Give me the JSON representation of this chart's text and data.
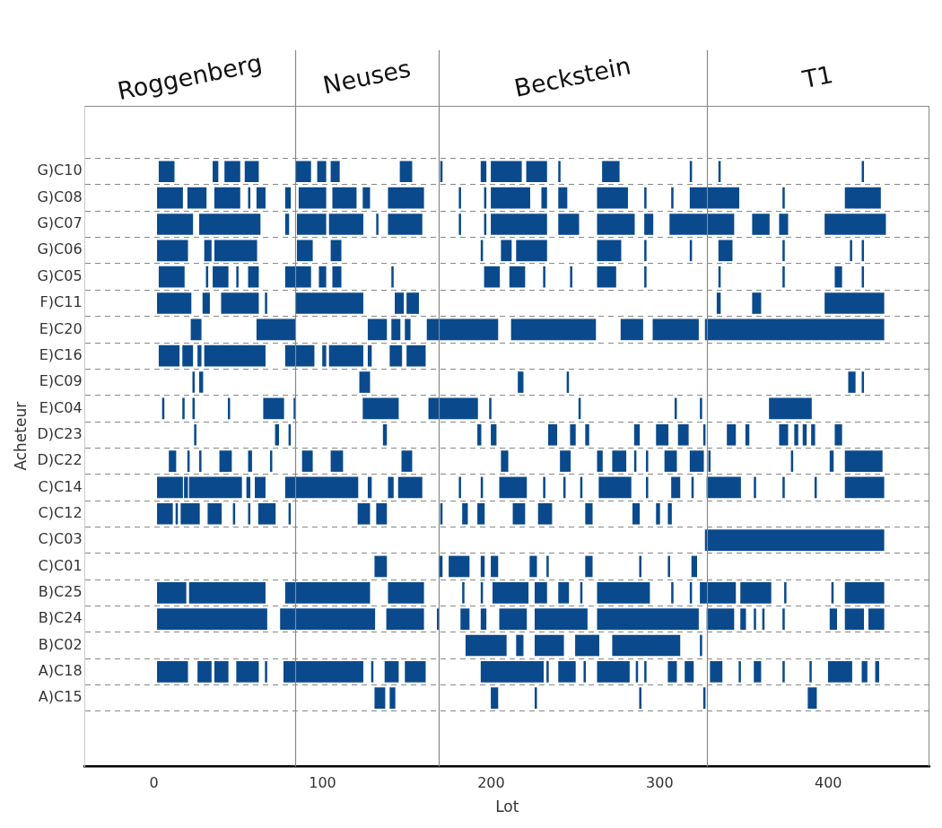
{
  "chart_data": {
    "type": "bar",
    "orientation": "horizontal",
    "xlabel": "Lot",
    "ylabel": "Acheteur",
    "color": "#0a4a8c",
    "grid": "y",
    "legend": false,
    "categories": [
      "G)C10",
      "G)C08",
      "G)C07",
      "G)C06",
      "G)C05",
      "F)C11",
      "E)C20",
      "E)C16",
      "E)C09",
      "E)C04",
      "D)C23",
      "D)C22",
      "C)C14",
      "C)C12",
      "C)C03",
      "C)C01",
      "B)C25",
      "B)C24",
      "B)C02",
      "A)C18",
      "A)C15"
    ],
    "xlim": [
      -41,
      460
    ],
    "xticks": [
      0,
      100,
      200,
      300,
      400
    ],
    "ref_lines": [
      {
        "axis": "x",
        "value": 84
      },
      {
        "axis": "x",
        "value": 169
      },
      {
        "axis": "x",
        "value": 328
      }
    ],
    "annotations": [
      "Roggenberg",
      "Neuses",
      "Beckstein",
      "T1"
    ],
    "series": [
      {
        "base": [
          3,
          2,
          2,
          2,
          3,
          2,
          22,
          3,
          23,
          5,
          24,
          9,
          2,
          2,
          327,
          131,
          2,
          2,
          185,
          2,
          131
        ],
        "values": [
          9,
          15,
          21,
          18,
          15,
          20,
          6,
          12,
          1,
          1,
          1,
          4,
          15,
          9,
          106,
          7,
          17,
          65,
          24,
          18,
          6
        ]
      },
      {
        "base": [
          35,
          20,
          27,
          30,
          31,
          29,
          61,
          17,
          27,
          17,
          72,
          20,
          18,
          13,
          null,
          169,
          21,
          75,
          215,
          26,
          140
        ],
        "values": [
          3,
          11,
          36,
          4,
          1,
          4,
          23,
          6,
          2,
          1,
          2,
          1,
          2,
          1,
          null,
          2,
          45,
          56,
          4,
          8,
          3
        ]
      },
      {
        "base": [
          42,
          36,
          78,
          36,
          35,
          40,
          127,
          26,
          122,
          23,
          80,
          27,
          21,
          16,
          null,
          175,
          78,
          138,
          226,
          36,
          200
        ],
        "values": [
          9,
          15,
          2,
          25,
          9,
          22,
          11,
          2,
          6,
          1,
          1,
          1,
          31,
          11,
          null,
          12,
          50,
          22,
          17,
          8,
          4
        ]
      },
      {
        "base": [
          54,
          56,
          85,
          85,
          49,
          66,
          141,
          30,
          216,
          44,
          136,
          39,
          55,
          32,
          null,
          194,
          139,
          168,
          250,
          49,
          226
        ],
        "values": [
          8,
          1,
          17,
          9,
          1,
          1,
          5,
          36,
          3,
          1,
          2,
          7,
          2,
          8,
          null,
          2,
          21,
          1,
          14,
          13,
          1
        ]
      },
      {
        "base": [
          84,
          61,
          104,
          105,
          56,
          84,
          149,
          78,
          245,
          65,
          192,
          56,
          60,
          47,
          null,
          200,
          183,
          182,
          272,
          66,
          288
        ],
        "values": [
          9,
          5,
          20,
          6,
          6,
          40,
          3,
          17,
          1,
          12,
          2,
          2,
          6,
          1,
          null,
          4,
          1,
          5,
          40,
          1,
          1
        ]
      },
      {
        "base": [
          97,
          78,
          132,
          194,
          78,
          143,
          162,
          100,
          412,
          83,
          200,
          69,
          78,
          56,
          null,
          223,
          194,
          194,
          324,
          77,
          326
        ],
        "values": [
          5,
          3,
          1,
          1,
          15,
          5,
          42,
          2,
          4,
          1,
          3,
          1,
          43,
          1,
          null,
          4,
          1,
          3,
          1,
          47,
          1
        ]
      },
      {
        "base": [
          105,
          86,
          139,
          206,
          98,
          150,
          212,
          104,
          420,
          124,
          234,
          88,
          127,
          62,
          null,
          233,
          201,
          205,
          null,
          129,
          388
        ],
        "values": [
          5,
          16,
          20,
          6,
          4,
          7,
          50,
          20,
          1,
          21,
          5,
          6,
          2,
          10,
          null,
          1,
          21,
          16,
          null,
          1,
          5
        ]
      },
      {
        "base": [
          146,
          106,
          181,
          215,
          106,
          334,
          277,
          127,
          null,
          163,
          247,
          105,
          139,
          80,
          null,
          256,
          226,
          226,
          null,
          137,
          null
        ],
        "values": [
          7,
          14,
          1,
          18,
          5,
          2,
          13,
          2,
          null,
          29,
          3,
          7,
          3,
          1,
          null,
          4,
          7,
          31,
          null,
          8,
          null
        ]
      },
      {
        "base": [
          170,
          124,
          196,
          263,
          141,
          355,
          296,
          140,
          null,
          199,
          256,
          147,
          145,
          121,
          null,
          288,
          240,
          263,
          null,
          149,
          null
        ],
        "values": [
          1,
          4,
          1,
          14,
          1,
          5,
          27,
          7,
          null,
          1,
          2,
          6,
          14,
          7,
          null,
          1,
          6,
          60,
          null,
          12,
          null
        ]
      },
      {
        "base": [
          194,
          139,
          200,
          291,
          196,
          398,
          327,
          150,
          null,
          252,
          285,
          206,
          181,
          132,
          null,
          305,
          253,
          328,
          null,
          194,
          null
        ],
        "values": [
          3,
          21,
          33,
          1,
          9,
          35,
          106,
          11,
          null,
          1,
          3,
          4,
          1,
          6,
          null,
          1,
          1,
          16,
          null,
          37,
          null
        ]
      },
      {
        "base": [
          200,
          181,
          240,
          318,
          211,
          null,
          null,
          null,
          null,
          309,
          298,
          241,
          194,
          170,
          null,
          319,
          263,
          348,
          null,
          233,
          null
        ],
        "values": [
          18,
          1,
          12,
          1,
          9,
          null,
          null,
          null,
          null,
          1,
          7,
          6,
          1,
          1,
          null,
          3,
          31,
          3,
          null,
          1,
          null
        ]
      },
      {
        "base": [
          221,
          196,
          263,
          335,
          231,
          null,
          null,
          null,
          null,
          324,
          311,
          263,
          205,
          183,
          null,
          null,
          307,
          356,
          null,
          240,
          null
        ],
        "values": [
          12,
          1,
          22,
          8,
          1,
          null,
          null,
          null,
          null,
          1,
          6,
          3,
          16,
          3,
          null,
          null,
          1,
          1,
          null,
          10,
          null
        ]
      },
      {
        "base": [
          240,
          200,
          291,
          373,
          247,
          null,
          null,
          null,
          null,
          365,
          326,
          272,
          231,
          192,
          null,
          null,
          318,
          361,
          null,
          255,
          null
        ],
        "values": [
          1,
          23,
          5,
          1,
          1,
          null,
          null,
          null,
          null,
          25,
          1,
          8,
          1,
          4,
          null,
          null,
          1,
          1,
          null,
          1,
          null
        ]
      },
      {
        "base": [
          266,
          230,
          306,
          413,
          263,
          null,
          null,
          null,
          null,
          null,
          340,
          285,
          243,
          213,
          null,
          null,
          324,
          373,
          null,
          263,
          null
        ],
        "values": [
          10,
          3,
          38,
          1,
          11,
          null,
          null,
          null,
          null,
          null,
          5,
          1,
          1,
          7,
          null,
          null,
          21,
          1,
          null,
          19,
          null
        ]
      },
      {
        "base": [
          318,
          240,
          355,
          420,
          291,
          null,
          null,
          null,
          null,
          null,
          351,
          292,
          253,
          228,
          null,
          null,
          348,
          401,
          null,
          286,
          null
        ],
        "values": [
          1,
          5,
          10,
          1,
          1,
          null,
          null,
          null,
          null,
          null,
          2,
          1,
          1,
          8,
          null,
          null,
          18,
          4,
          null,
          1,
          null
        ]
      },
      {
        "base": [
          335,
          263,
          371,
          null,
          335,
          null,
          null,
          null,
          null,
          null,
          371,
          303,
          264,
          256,
          null,
          null,
          374,
          410,
          null,
          291,
          null
        ],
        "values": [
          1,
          18,
          5,
          null,
          1,
          null,
          null,
          null,
          null,
          null,
          5,
          7,
          19,
          4,
          null,
          null,
          1,
          11,
          null,
          1,
          null
        ]
      },
      {
        "base": [
          420,
          291,
          398,
          null,
          373,
          null,
          null,
          null,
          null,
          null,
          380,
          318,
          292,
          284,
          null,
          null,
          402,
          424,
          null,
          305,
          null
        ],
        "values": [
          1,
          1,
          36,
          null,
          1,
          null,
          null,
          null,
          null,
          null,
          2,
          8,
          1,
          4,
          null,
          null,
          1,
          9,
          null,
          5,
          null
        ]
      },
      {
        "base": [
          null,
          307,
          null,
          null,
          404,
          null,
          null,
          null,
          null,
          null,
          385,
          329,
          307,
          298,
          null,
          null,
          410,
          null,
          null,
          315,
          null
        ],
        "values": [
          null,
          1,
          null,
          null,
          4,
          null,
          null,
          null,
          null,
          null,
          2,
          1,
          5,
          2,
          null,
          null,
          23,
          null,
          null,
          5,
          null
        ]
      },
      {
        "base": [
          null,
          318,
          null,
          null,
          420,
          null,
          null,
          null,
          null,
          null,
          390,
          378,
          319,
          305,
          null,
          null,
          null,
          null,
          null,
          330,
          null
        ],
        "values": [
          null,
          29,
          null,
          null,
          1,
          null,
          null,
          null,
          null,
          null,
          2,
          1,
          1,
          2,
          null,
          null,
          null,
          null,
          null,
          7,
          null
        ]
      },
      {
        "base": [
          null,
          373,
          null,
          null,
          null,
          null,
          null,
          null,
          null,
          null,
          404,
          401,
          328,
          null,
          null,
          null,
          null,
          null,
          null,
          347,
          null
        ],
        "values": [
          null,
          1,
          null,
          null,
          null,
          null,
          null,
          null,
          null,
          null,
          4,
          2,
          20,
          null,
          null,
          null,
          null,
          null,
          null,
          1,
          null
        ]
      },
      {
        "base": [
          null,
          410,
          null,
          null,
          null,
          null,
          null,
          null,
          null,
          null,
          null,
          410,
          356,
          null,
          null,
          null,
          null,
          null,
          null,
          356,
          null
        ],
        "values": [
          null,
          21,
          null,
          null,
          null,
          null,
          null,
          null,
          null,
          null,
          null,
          22,
          1,
          null,
          null,
          null,
          null,
          null,
          null,
          4,
          null
        ]
      },
      {
        "base": [
          null,
          null,
          null,
          null,
          null,
          null,
          null,
          null,
          null,
          null,
          null,
          null,
          373,
          null,
          null,
          null,
          null,
          null,
          null,
          373,
          null
        ],
        "values": [
          null,
          null,
          null,
          null,
          null,
          null,
          null,
          null,
          null,
          null,
          null,
          null,
          1,
          null,
          null,
          null,
          null,
          null,
          null,
          1,
          null
        ]
      },
      {
        "base": [
          null,
          null,
          null,
          null,
          null,
          null,
          null,
          null,
          null,
          null,
          null,
          null,
          392,
          null,
          null,
          null,
          null,
          null,
          null,
          389,
          null
        ],
        "values": [
          null,
          null,
          null,
          null,
          null,
          null,
          null,
          null,
          null,
          null,
          null,
          null,
          1,
          null,
          null,
          null,
          null,
          null,
          null,
          1,
          null
        ]
      },
      {
        "base": [
          null,
          null,
          null,
          null,
          null,
          null,
          null,
          null,
          null,
          null,
          null,
          null,
          410,
          null,
          null,
          null,
          null,
          null,
          null,
          400,
          null
        ],
        "values": [
          null,
          null,
          null,
          null,
          null,
          null,
          null,
          null,
          null,
          null,
          null,
          null,
          23,
          null,
          null,
          null,
          null,
          null,
          null,
          14,
          null
        ]
      },
      {
        "base": [
          null,
          null,
          null,
          null,
          null,
          null,
          null,
          null,
          null,
          null,
          null,
          null,
          null,
          null,
          null,
          null,
          null,
          null,
          null,
          420,
          null
        ],
        "values": [
          null,
          null,
          null,
          null,
          null,
          null,
          null,
          null,
          null,
          null,
          null,
          null,
          null,
          null,
          null,
          null,
          null,
          null,
          null,
          3,
          null
        ]
      },
      {
        "base": [
          null,
          null,
          null,
          null,
          null,
          null,
          null,
          null,
          null,
          null,
          null,
          null,
          null,
          null,
          null,
          null,
          null,
          null,
          null,
          428,
          null
        ],
        "values": [
          null,
          null,
          null,
          null,
          null,
          null,
          null,
          null,
          null,
          null,
          null,
          null,
          null,
          null,
          null,
          null,
          null,
          null,
          null,
          2,
          null
        ]
      }
    ]
  }
}
